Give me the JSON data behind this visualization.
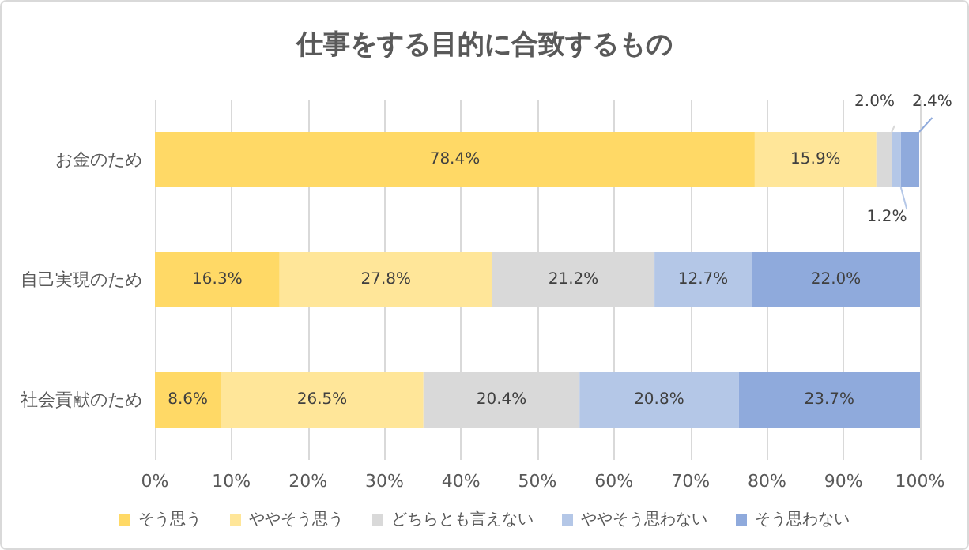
{
  "chart_data": {
    "type": "bar",
    "orientation": "horizontal",
    "stacked": true,
    "title": "仕事をする目的に合致するもの",
    "categories": [
      "お金のため",
      "自己実現のため",
      "社会貢献のため"
    ],
    "series": [
      {
        "name": "そう思う",
        "color": "#ffd966",
        "values": [
          78.4,
          16.3,
          8.6
        ],
        "value_labels": [
          "78.4%",
          "16.3%",
          "8.6%"
        ]
      },
      {
        "name": "ややそう思う",
        "color": "#ffe699",
        "values": [
          15.9,
          27.8,
          26.5
        ],
        "value_labels": [
          "15.9%",
          "27.8%",
          "26.5%"
        ]
      },
      {
        "name": "どちらとも言えない",
        "color": "#d9d9d9",
        "values": [
          2.0,
          21.2,
          20.4
        ],
        "value_labels": [
          "2.0%",
          "21.2%",
          "20.4%"
        ]
      },
      {
        "name": "ややそう思わない",
        "color": "#b4c7e7",
        "values": [
          1.2,
          12.7,
          20.8
        ],
        "value_labels": [
          "1.2%",
          "12.7%",
          "20.8%"
        ]
      },
      {
        "name": "そう思わない",
        "color": "#8faadc",
        "values": [
          2.4,
          22.0,
          23.7
        ],
        "value_labels": [
          "2.4%",
          "22.0%",
          "23.7%"
        ]
      }
    ],
    "xlim": [
      0,
      100
    ],
    "xticks": [
      {
        "value": 0,
        "label": "0%"
      },
      {
        "value": 10,
        "label": "10%"
      },
      {
        "value": 20,
        "label": "20%"
      },
      {
        "value": 30,
        "label": "30%"
      },
      {
        "value": 40,
        "label": "40%"
      },
      {
        "value": 50,
        "label": "50%"
      },
      {
        "value": 60,
        "label": "60%"
      },
      {
        "value": 70,
        "label": "70%"
      },
      {
        "value": 80,
        "label": "80%"
      },
      {
        "value": 90,
        "label": "90%"
      },
      {
        "value": 100,
        "label": "100%"
      }
    ],
    "grid": "x",
    "legend": "bottom"
  }
}
